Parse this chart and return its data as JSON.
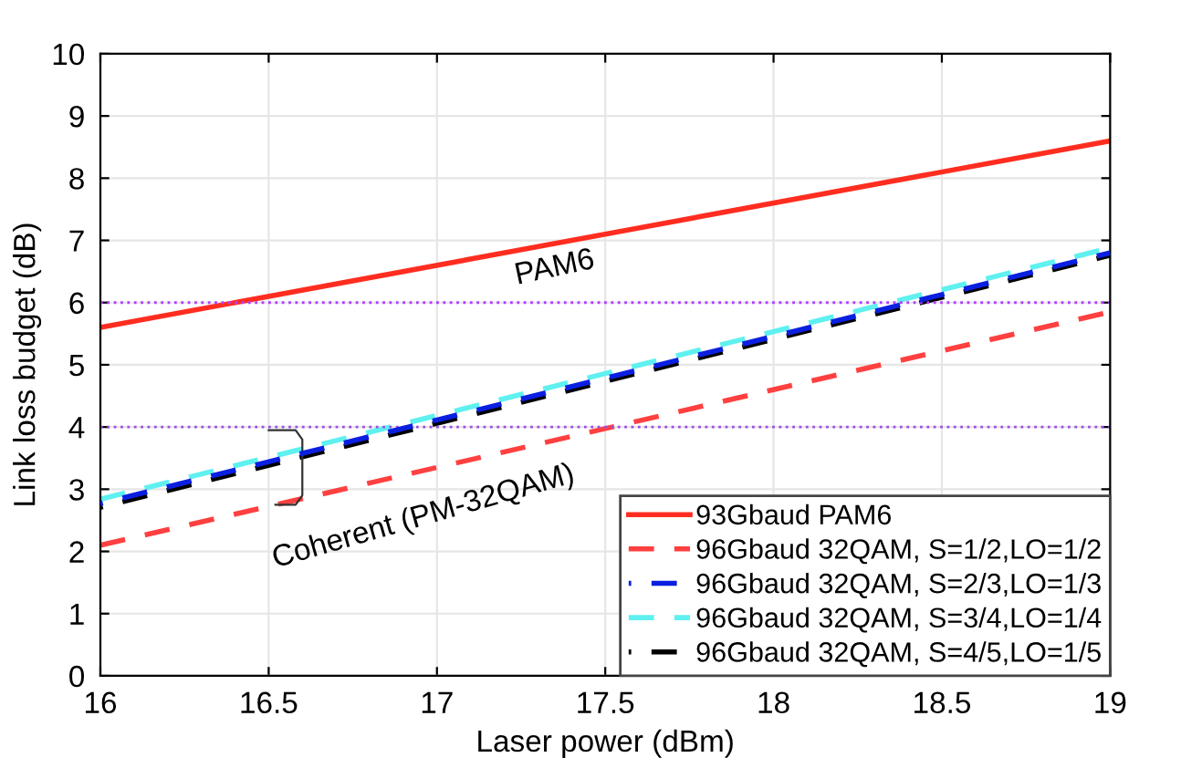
{
  "chart_data": {
    "type": "line",
    "xlabel": "Laser power (dBm)",
    "ylabel": "Link loss budget (dB)",
    "x": [
      16,
      19
    ],
    "series": [
      {
        "name": "93Gbaud PAM6",
        "color": "#ff2d20",
        "values": [
          5.6,
          8.6
        ],
        "line_style": "solid"
      },
      {
        "name": "96Gbaud 32QAM, S=1/2,LO=1/2",
        "color": "#ff4040",
        "values": [
          2.1,
          5.85
        ],
        "line_style": "dashed"
      },
      {
        "name": "96Gbaud 32QAM, S=2/3,LO=1/3",
        "color": "#0a1fe0",
        "values": [
          2.77,
          6.8
        ],
        "line_style": "dashed"
      },
      {
        "name": "96Gbaud 32QAM, S=3/4,LO=1/4",
        "color": "#5ff0f0",
        "values": [
          2.84,
          6.88
        ],
        "line_style": "dashed"
      },
      {
        "name": "96Gbaud 32QAM, S=4/5,LO=1/5",
        "color": "#000000",
        "values": [
          2.71,
          6.76
        ],
        "line_style": "dashed"
      }
    ],
    "ref_lines": [
      {
        "axis": "y",
        "value": 6,
        "color": "#b040ff",
        "line_style": "dotted"
      },
      {
        "axis": "y",
        "value": 4,
        "color": "#9a50e0",
        "line_style": "dotted"
      }
    ],
    "annotations": [
      "PAM6",
      "Coherent (PM-32QAM)"
    ],
    "xlim": [
      16,
      19
    ],
    "ylim": [
      0,
      10
    ],
    "xticks": [
      16,
      16.5,
      17,
      17.5,
      18,
      18.5,
      19
    ],
    "yticks": [
      0,
      1,
      2,
      3,
      4,
      5,
      6,
      7,
      8,
      9,
      10
    ],
    "grid": true,
    "legend": "bottom right"
  }
}
